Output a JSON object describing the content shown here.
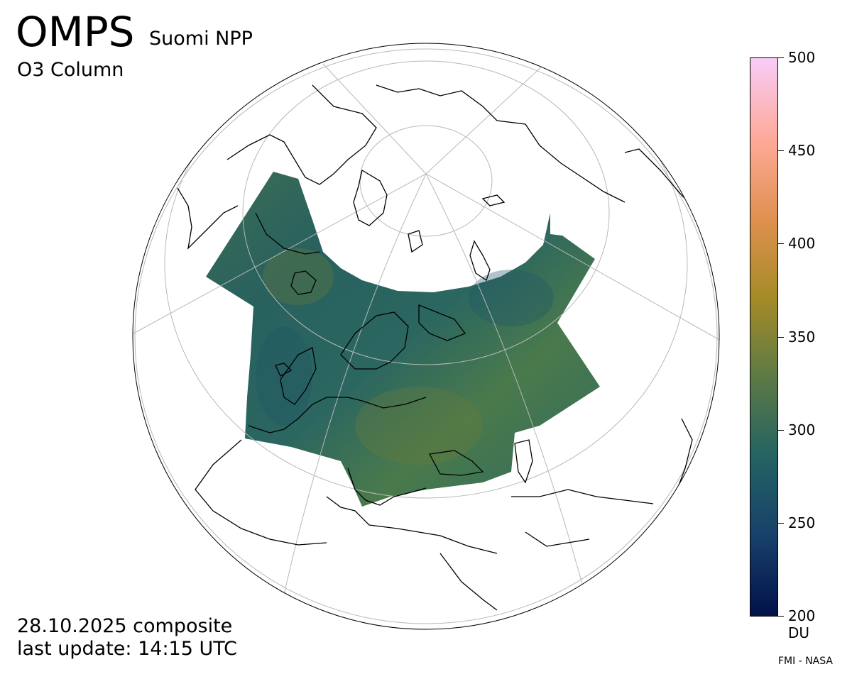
{
  "header": {
    "instrument": "OMPS",
    "satellite": "Suomi NPP",
    "product": "O3 Column"
  },
  "footer": {
    "date_line": "28.10.2025 composite",
    "update_line": "last update: 14:15 UTC",
    "credit": "FMI - NASA"
  },
  "map": {
    "projection": "orthographic",
    "graticule": "on",
    "coverage_region": "Europe / North Atlantic / western Russia",
    "colors": {
      "globe_outline": "#000000",
      "graticule": "#b8b8b8",
      "coastline": "#000000",
      "field_dominant": "#2f6b5e"
    }
  },
  "colorbar": {
    "min": 200,
    "max": 500,
    "ticks": [
      "500",
      "450",
      "400",
      "350",
      "300",
      "250",
      "200"
    ],
    "unit": "DU",
    "colors": [
      "#02124a",
      "#17406a",
      "#246363",
      "#5d7a45",
      "#a68b27",
      "#e09150",
      "#ffaa9b",
      "#f8ccf8"
    ]
  }
}
